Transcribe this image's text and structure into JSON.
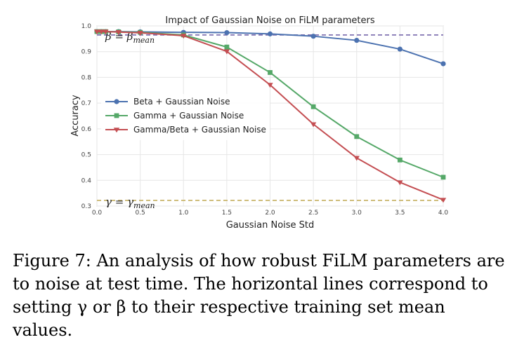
{
  "chart_data": {
    "type": "line",
    "title": "Impact of Gaussian Noise on FiLM parameters",
    "xlabel": "Gaussian Noise Std",
    "ylabel": "Accuracy",
    "xlim": [
      0.0,
      4.0
    ],
    "ylim": [
      0.3,
      1.0
    ],
    "xticks": [
      "0.0",
      "0.5",
      "1.0",
      "1.5",
      "2.0",
      "2.5",
      "3.0",
      "3.5",
      "4.0"
    ],
    "yticks": [
      "0.3",
      "0.4",
      "0.5",
      "0.6",
      "0.7",
      "0.8",
      "0.9",
      "1.0"
    ],
    "grid": true,
    "legend_position": "center-left",
    "series": [
      {
        "name": "Beta + Gaussian Noise",
        "color": "#4c72b0",
        "marker": "circle",
        "x": [
          0.0,
          0.05,
          0.1,
          0.25,
          0.5,
          1.0,
          1.5,
          2.0,
          2.5,
          3.0,
          3.5,
          4.0
        ],
        "y": [
          0.978,
          0.978,
          0.978,
          0.978,
          0.977,
          0.975,
          0.974,
          0.969,
          0.96,
          0.944,
          0.91,
          0.853
        ]
      },
      {
        "name": "Gamma + Gaussian Noise",
        "color": "#55a868",
        "marker": "square",
        "x": [
          0.0,
          0.05,
          0.1,
          0.25,
          0.5,
          1.0,
          1.5,
          2.0,
          2.5,
          3.0,
          3.5,
          4.0
        ],
        "y": [
          0.978,
          0.978,
          0.978,
          0.977,
          0.975,
          0.965,
          0.918,
          0.819,
          0.686,
          0.57,
          0.479,
          0.412
        ]
      },
      {
        "name": "Gamma/Beta + Gaussian Noise",
        "color": "#c44e52",
        "marker": "triangle-down",
        "x": [
          0.0,
          0.05,
          0.1,
          0.25,
          0.5,
          1.0,
          1.5,
          2.0,
          2.5,
          3.0,
          3.5,
          4.0
        ],
        "y": [
          0.978,
          0.978,
          0.978,
          0.976,
          0.973,
          0.962,
          0.901,
          0.771,
          0.618,
          0.487,
          0.392,
          0.324
        ]
      }
    ],
    "reference_lines": [
      {
        "label_base": "β",
        "label_eq": " = ",
        "label_rhs": "β",
        "label_sub": "mean",
        "y": 0.965,
        "color": "#8172b2",
        "style": "dashed"
      },
      {
        "label_base": "γ",
        "label_eq": " = ",
        "label_rhs": "γ",
        "label_sub": "mean",
        "y": 0.322,
        "color": "#ccb974",
        "style": "dashed"
      }
    ]
  },
  "caption": "Figure 7:  An analysis of how robust FiLM parameters are to noise at test time. The horizontal lines correspond to setting γ or β to their respective training set mean values."
}
